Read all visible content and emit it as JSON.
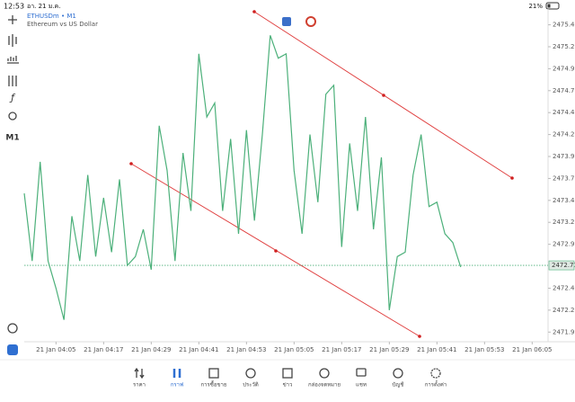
{
  "status_bar": {
    "time": "12:53",
    "date": "อา. 21 ม.ค.",
    "battery": "21%"
  },
  "toolbar": {
    "timeframe": "M1"
  },
  "chart_data": {
    "type": "line",
    "title": "ETHUSDm • M1",
    "subtitle": "Ethereum vs US Dollar",
    "color": "#4cb07a",
    "x": [
      "21 Jan 03:57",
      "21 Jan 03:59",
      "21 Jan 04:01",
      "21 Jan 04:03",
      "21 Jan 04:05",
      "21 Jan 04:07",
      "21 Jan 04:09",
      "21 Jan 04:11",
      "21 Jan 04:13",
      "21 Jan 04:15",
      "21 Jan 04:17",
      "21 Jan 04:19",
      "21 Jan 04:21",
      "21 Jan 04:23",
      "21 Jan 04:25",
      "21 Jan 04:27",
      "21 Jan 04:29",
      "21 Jan 04:31",
      "21 Jan 04:33",
      "21 Jan 04:35",
      "21 Jan 04:37",
      "21 Jan 04:39",
      "21 Jan 04:41",
      "21 Jan 04:43",
      "21 Jan 04:45",
      "21 Jan 04:47",
      "21 Jan 04:49",
      "21 Jan 04:51",
      "21 Jan 04:53",
      "21 Jan 04:55",
      "21 Jan 04:57",
      "21 Jan 04:59",
      "21 Jan 05:01",
      "21 Jan 05:03",
      "21 Jan 05:05",
      "21 Jan 05:07",
      "21 Jan 05:09",
      "21 Jan 05:11",
      "21 Jan 05:13",
      "21 Jan 05:15",
      "21 Jan 05:17",
      "21 Jan 05:19",
      "21 Jan 05:21",
      "21 Jan 05:23",
      "21 Jan 05:25",
      "21 Jan 05:27",
      "21 Jan 05:29",
      "21 Jan 05:31",
      "21 Jan 05:33",
      "21 Jan 05:35",
      "21 Jan 05:37",
      "21 Jan 05:39",
      "21 Jan 05:41",
      "21 Jan 05:43",
      "21 Jan 05:45",
      "21 Jan 05:47"
    ],
    "values": [
      2473.53,
      2472.76,
      2473.89,
      2472.76,
      2472.45,
      2472.09,
      2473.27,
      2472.76,
      2473.74,
      2472.81,
      2473.48,
      2472.86,
      2473.69,
      2472.71,
      2472.81,
      2473.12,
      2472.66,
      2474.3,
      2473.79,
      2472.76,
      2473.99,
      2473.33,
      2475.12,
      2474.4,
      2474.56,
      2473.33,
      2474.15,
      2473.07,
      2474.25,
      2473.22,
      2474.2,
      2475.33,
      2475.07,
      2475.12,
      2473.79,
      2473.07,
      2474.2,
      2473.43,
      2474.66,
      2474.76,
      2472.92,
      2474.1,
      2473.33,
      2474.4,
      2473.12,
      2473.94,
      2472.2,
      2472.81,
      2472.86,
      2473.74,
      2474.2,
      2473.38,
      2473.43,
      2473.07,
      2472.97,
      2472.69
    ],
    "xlim": [
      "21 Jan 03:57",
      "21 Jan 06:09"
    ],
    "xticks": [
      "21 Jan 04:05",
      "21 Jan 04:17",
      "21 Jan 04:29",
      "21 Jan 04:41",
      "21 Jan 04:53",
      "21 Jan 05:05",
      "21 Jan 05:17",
      "21 Jan 05:29",
      "21 Jan 05:41",
      "21 Jan 05:53",
      "21 Jan 06:05"
    ],
    "ylim": [
      2471.84,
      2475.63
    ],
    "yticks": [
      2475.45,
      {
        "value": 2475.2,
        "label": "2475.20"
      },
      2474.95,
      {
        "value": 2474.7,
        "label": "2474.70"
      },
      2474.45,
      {
        "value": 2474.2,
        "label": "2474.20"
      },
      2473.95,
      {
        "value": 2473.7,
        "label": "2473.70"
      },
      2473.45,
      {
        "value": 2473.2,
        "label": "2473.20"
      },
      2472.95,
      2472.45,
      {
        "value": 2472.2,
        "label": "2472.20"
      },
      2471.95
    ],
    "current_price": 2472.71
  },
  "nav": {
    "items": [
      {
        "label": "ราคา"
      },
      {
        "label": "กราฟ"
      },
      {
        "label": "การซื้อขาย"
      },
      {
        "label": "ประวัติ"
      },
      {
        "label": "ข่าว"
      },
      {
        "label": "กล่องจดหมาย"
      },
      {
        "label": "แชท"
      },
      {
        "label": "บัญชี"
      },
      {
        "label": "การตั้งค่า"
      }
    ]
  }
}
